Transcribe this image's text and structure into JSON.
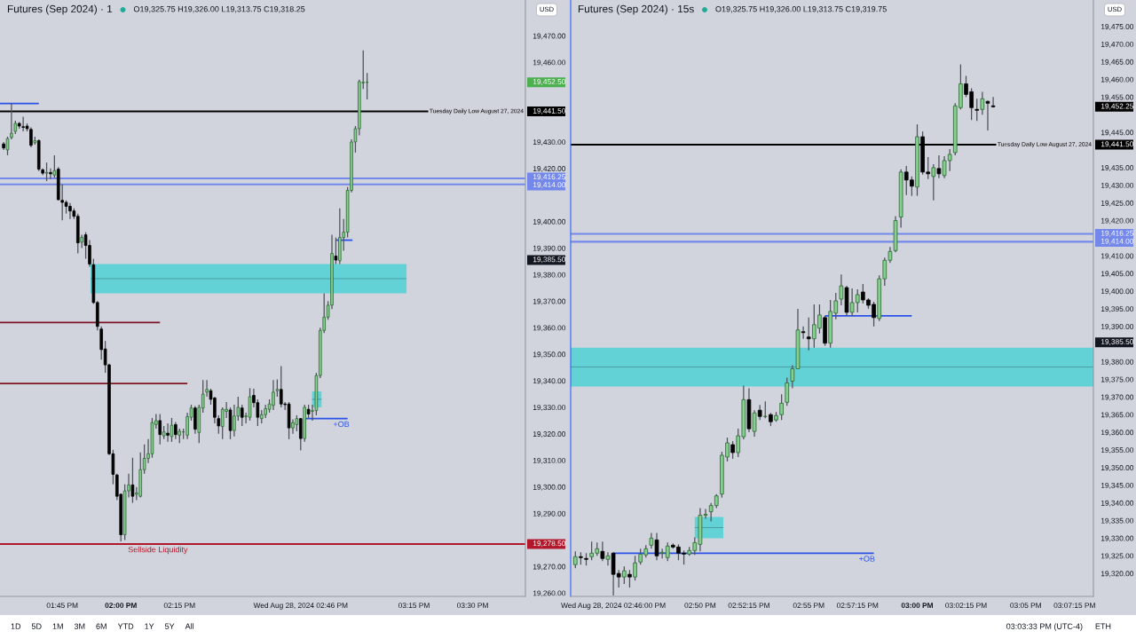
{
  "chart_data": [
    {
      "type": "candlestick",
      "title": "Futures (Sep 2024) · 1",
      "subtitle": "O19,325.75 H19,326.00 L19,313.75 C19,318.25",
      "ylabel": "USD",
      "x": [
        "2024-08-28T13:30",
        "2024-08-28T13:31",
        "2024-08-28T13:32",
        "2024-08-28T13:33",
        "2024-08-28T13:34",
        "2024-08-28T13:35",
        "2024-08-28T13:36",
        "2024-08-28T13:37",
        "2024-08-28T13:38",
        "2024-08-28T13:39",
        "2024-08-28T13:40",
        "2024-08-28T13:41",
        "2024-08-28T13:42",
        "2024-08-28T13:43",
        "2024-08-28T13:44",
        "2024-08-28T13:45",
        "2024-08-28T13:46",
        "2024-08-28T13:47",
        "2024-08-28T13:48",
        "2024-08-28T13:49",
        "2024-08-28T13:50",
        "2024-08-28T13:51",
        "2024-08-28T13:52",
        "2024-08-28T13:53",
        "2024-08-28T13:54",
        "2024-08-28T13:55",
        "2024-08-28T13:56",
        "2024-08-28T13:57",
        "2024-08-28T13:58",
        "2024-08-28T13:59",
        "2024-08-28T14:00",
        "2024-08-28T14:01",
        "2024-08-28T14:02",
        "2024-08-28T14:03",
        "2024-08-28T14:04",
        "2024-08-28T14:05",
        "2024-08-28T14:06",
        "2024-08-28T14:07",
        "2024-08-28T14:08",
        "2024-08-28T14:09",
        "2024-08-28T14:10",
        "2024-08-28T14:11",
        "2024-08-28T14:12",
        "2024-08-28T14:13",
        "2024-08-28T14:14",
        "2024-08-28T14:15",
        "2024-08-28T14:16",
        "2024-08-28T14:17",
        "2024-08-28T14:18",
        "2024-08-28T14:19",
        "2024-08-28T14:20",
        "2024-08-28T14:21",
        "2024-08-28T14:22",
        "2024-08-28T14:23",
        "2024-08-28T14:24",
        "2024-08-28T14:25",
        "2024-08-28T14:26",
        "2024-08-28T14:27",
        "2024-08-28T14:28",
        "2024-08-28T14:29",
        "2024-08-28T14:30",
        "2024-08-28T14:31",
        "2024-08-28T14:32",
        "2024-08-28T14:33",
        "2024-08-28T14:34",
        "2024-08-28T14:35",
        "2024-08-28T14:36",
        "2024-08-28T14:37",
        "2024-08-28T14:38",
        "2024-08-28T14:39",
        "2024-08-28T14:40",
        "2024-08-28T14:41",
        "2024-08-28T14:42",
        "2024-08-28T14:43",
        "2024-08-28T14:44",
        "2024-08-28T14:45",
        "2024-08-28T14:46",
        "2024-08-28T14:47",
        "2024-08-28T14:48",
        "2024-08-28T14:49",
        "2024-08-28T14:50",
        "2024-08-28T14:51",
        "2024-08-28T14:52",
        "2024-08-28T14:53",
        "2024-08-28T14:54",
        "2024-08-28T14:55",
        "2024-08-28T14:56",
        "2024-08-28T14:57",
        "2024-08-28T14:58",
        "2024-08-28T14:59",
        "2024-08-28T15:00",
        "2024-08-28T15:01",
        "2024-08-28T15:02",
        "2024-08-28T15:03"
      ],
      "ohlc": [
        [
          19429.25,
          19430.0,
          19427.0,
          19427.75
        ],
        [
          19427.0,
          19432.0,
          19425.0,
          19431.25
        ],
        [
          19431.75,
          19444.5,
          19431.0,
          19433.25
        ],
        [
          19434.0,
          19438.0,
          19433.0,
          19437.0
        ],
        [
          19437.0,
          19437.5,
          19435.0,
          19436.0
        ],
        [
          19435.75,
          19439.5,
          19434.0,
          19435.5
        ],
        [
          19436.0,
          19437.0,
          19434.0,
          19435.0
        ],
        [
          19434.75,
          19435.5,
          19428.0,
          19428.75
        ],
        [
          19429.75,
          19432.0,
          19429.0,
          19430.5
        ],
        [
          19430.5,
          19431.0,
          19419.0,
          19419.75
        ],
        [
          19419.5,
          19420.0,
          19417.5,
          19418.25
        ],
        [
          19418.25,
          19422.25,
          19415.25,
          19418.5
        ],
        [
          19418.5,
          19420.0,
          19416.0,
          19418.0
        ],
        [
          19417.5,
          19425.0,
          19416.5,
          19419.25
        ],
        [
          19419.75,
          19420.5,
          19408.0,
          19408.25
        ],
        [
          19408.0,
          19414.0,
          19400.5,
          19407.25
        ],
        [
          19407.25,
          19408.0,
          19403.0,
          19405.75
        ],
        [
          19405.75,
          19407.0,
          19401.0,
          19404.0
        ],
        [
          19404.0,
          19405.0,
          19401.0,
          19402.0
        ],
        [
          19402.0,
          19403.0,
          19388.0,
          19392.0
        ],
        [
          19392.25,
          19395.0,
          19390.0,
          19394.0
        ],
        [
          19395.0,
          19396.0,
          19386.0,
          19391.0
        ],
        [
          19391.0,
          19393.0,
          19383.0,
          19384.0
        ],
        [
          19383.75,
          19386.0,
          19369.0,
          19369.5
        ],
        [
          19369.5,
          19370.0,
          19359.0,
          19360.5
        ],
        [
          19359.5,
          19360.5,
          19348.0,
          19351.75
        ],
        [
          19352.0,
          19355.0,
          19343.0,
          19346.0
        ],
        [
          19346.0,
          19346.5,
          19312.0,
          19312.5
        ],
        [
          19312.5,
          19314.0,
          19301.0,
          19304.75
        ],
        [
          19304.5,
          19305.0,
          19295.0,
          19296.5
        ],
        [
          19297.25,
          19297.5,
          19279.5,
          19282.0
        ],
        [
          19282.0,
          19301.0,
          19280.0,
          19298.5
        ],
        [
          19298.5,
          19305.0,
          19296.0,
          19300.75
        ],
        [
          19300.75,
          19311.0,
          19294.0,
          19296.5
        ],
        [
          19297.25,
          19300.0,
          19295.0,
          19297.75
        ],
        [
          19296.5,
          19313.0,
          19296.0,
          19306.5
        ],
        [
          19306.5,
          19316.0,
          19305.0,
          19310.75
        ],
        [
          19310.75,
          19318.0,
          19309.0,
          19312.5
        ],
        [
          19312.5,
          19326.0,
          19311.0,
          19324.25
        ],
        [
          19323.5,
          19327.5,
          19322.0,
          19325.0
        ],
        [
          19325.0,
          19327.5,
          19316.0,
          19319.75
        ],
        [
          19319.25,
          19323.0,
          19318.0,
          19320.75
        ],
        [
          19320.25,
          19324.0,
          19317.0,
          19319.5
        ],
        [
          19319.0,
          19326.0,
          19317.0,
          19323.25
        ],
        [
          19323.5,
          19324.5,
          19318.0,
          19319.75
        ],
        [
          19319.5,
          19322.0,
          19316.5,
          19321.0
        ],
        [
          19320.75,
          19322.0,
          19318.0,
          19320.75
        ],
        [
          19319.5,
          19328.0,
          19318.0,
          19326.5
        ],
        [
          19326.25,
          19331.0,
          19325.0,
          19329.75
        ],
        [
          19329.75,
          19330.5,
          19320.0,
          19321.75
        ],
        [
          19320.5,
          19331.0,
          19316.5,
          19330.0
        ],
        [
          19329.75,
          19340.25,
          19328.0,
          19335.0
        ],
        [
          19335.75,
          19340.25,
          19334.0,
          19336.75
        ],
        [
          19336.25,
          19337.0,
          19331.0,
          19333.0
        ],
        [
          19333.5,
          19334.0,
          19324.0,
          19326.25
        ],
        [
          19325.75,
          19327.0,
          19320.0,
          19323.0
        ],
        [
          19322.75,
          19330.0,
          19318.0,
          19329.25
        ],
        [
          19328.5,
          19332.0,
          19326.0,
          19329.25
        ],
        [
          19329.0,
          19330.0,
          19318.0,
          19321.25
        ],
        [
          19321.25,
          19331.0,
          19319.0,
          19326.75
        ],
        [
          19326.75,
          19334.0,
          19325.0,
          19330.0
        ],
        [
          19329.75,
          19331.0,
          19323.0,
          19326.25
        ],
        [
          19326.5,
          19328.0,
          19324.0,
          19326.75
        ],
        [
          19326.25,
          19337.25,
          19325.0,
          19334.0
        ],
        [
          19334.5,
          19337.0,
          19330.0,
          19331.75
        ],
        [
          19331.75,
          19333.0,
          19323.0,
          19326.25
        ],
        [
          19325.75,
          19329.0,
          19324.0,
          19327.25
        ],
        [
          19327.25,
          19331.0,
          19326.0,
          19329.5
        ],
        [
          19329.25,
          19333.0,
          19328.0,
          19331.25
        ],
        [
          19330.75,
          19340.25,
          19329.0,
          19335.75
        ],
        [
          19336.25,
          19340.5,
          19334.0,
          19336.75
        ],
        [
          19336.75,
          19345.5,
          19330.0,
          19331.25
        ],
        [
          19331.25,
          19332.0,
          19329.0,
          19331.0
        ],
        [
          19331.25,
          19332.0,
          19318.0,
          19322.25
        ],
        [
          19322.25,
          19325.5,
          19320.0,
          19324.25
        ],
        [
          19323.5,
          19327.0,
          19321.0,
          19325.75
        ],
        [
          19325.75,
          19326.0,
          19313.75,
          19318.25
        ],
        [
          19318.25,
          19331.0,
          19317.0,
          19330.0
        ],
        [
          19329.25,
          19331.0,
          19326.0,
          19327.5
        ],
        [
          19328.5,
          19331.0,
          19325.0,
          19328.75
        ],
        [
          19328.75,
          19343.0,
          19327.0,
          19342.0
        ],
        [
          19342.0,
          19360.0,
          19341.0,
          19359.0
        ],
        [
          19359.0,
          19373.0,
          19358.0,
          19364.0
        ],
        [
          19364.0,
          19370.0,
          19363.0,
          19368.5
        ],
        [
          19368.5,
          19395.0,
          19367.0,
          19388.0
        ],
        [
          19387.0,
          19394.0,
          19384.0,
          19385.5
        ],
        [
          19385.25,
          19405.0,
          19384.0,
          19394.0
        ],
        [
          19394.0,
          19401.0,
          19389.0,
          19396.0
        ],
        [
          19396.0,
          19413.0,
          19394.0,
          19411.75
        ],
        [
          19411.75,
          19431.0,
          19411.0,
          19430.0
        ],
        [
          19430.0,
          19436.0,
          19426.0,
          19435.0
        ],
        [
          19435.0,
          19453.5,
          19432.5,
          19452.75
        ],
        [
          19452.25,
          19464.5,
          19450.0,
          19452.5
        ],
        [
          19452.5,
          19456.0,
          19446.0,
          19452.5
        ]
      ],
      "xlim": [
        "2024-08-28T13:29:04",
        "2024-08-28T15:43:30"
      ],
      "ylim": [
        19258.75,
        19483.5
      ],
      "xticks": [
        {
          "value": "2024-08-28T13:45",
          "label": "01:45 PM"
        },
        {
          "value": "2024-08-28T14:00",
          "label": "02:00 PM"
        },
        {
          "value": "2024-08-28T14:15",
          "label": "02:15 PM"
        },
        {
          "value": "2024-08-28T14:46",
          "label": "Wed Aug 28, 2024 02:46 PM"
        },
        {
          "value": "2024-08-28T15:15",
          "label": "03:15 PM"
        },
        {
          "value": "2024-08-28T15:30",
          "label": "03:30 PM"
        }
      ],
      "yticks": [
        {
          "value": 19470,
          "label": "19,470.00"
        },
        {
          "value": 19460,
          "label": "19,460.00"
        },
        {
          "value": 19452.5,
          "label": "19,452.50"
        },
        {
          "value": 19441.5,
          "label": "19,441.50"
        },
        {
          "value": 19430,
          "label": "19,430.00"
        },
        {
          "value": 19420,
          "label": "19,420.00"
        },
        {
          "value": 19416.25,
          "label": "19,416.25"
        },
        {
          "value": 19414.0,
          "label": "19,414.00"
        },
        {
          "value": 19400,
          "label": "19,400.00"
        },
        {
          "value": 19390,
          "label": "19,390.00"
        },
        {
          "value": 19385.5,
          "label": "19,385.50"
        },
        {
          "value": 19380,
          "label": "19,380.00"
        },
        {
          "value": 19370,
          "label": "19,370.00"
        },
        {
          "value": 19360,
          "label": "19,360.00"
        },
        {
          "value": 19350,
          "label": "19,350.00"
        },
        {
          "value": 19340,
          "label": "19,340.00"
        },
        {
          "value": 19330,
          "label": "19,330.00"
        },
        {
          "value": 19320,
          "label": "19,320.00"
        },
        {
          "value": 19310,
          "label": "19,310.00"
        },
        {
          "value": 19300,
          "label": "19,300.00"
        },
        {
          "value": 19290,
          "label": "19,290.00"
        },
        {
          "value": 19278.5,
          "label": "19,278.50"
        },
        {
          "value": 19270,
          "label": "19,270.00"
        },
        {
          "value": 19260,
          "label": "19,260.00"
        }
      ],
      "series": [
        {
          "type": "line",
          "x": [
            "2024-08-28T13:52:13",
            "2024-08-28T15:13:05"
          ],
          "values": [
            19378.5,
            19378.5
          ],
          "lower": [
            19373,
            19373
          ],
          "upper": [
            19384,
            19384
          ],
          "color": "#4a9ea2"
        },
        {
          "type": "line",
          "x": [
            "2024-08-28T14:48:55",
            "2024-08-28T14:51:20"
          ],
          "values": [
            19333,
            19333
          ],
          "lower": [
            19330,
            19330
          ],
          "upper": [
            19336,
            19336
          ],
          "color": "#4a9ea2"
        },
        {
          "type": "line",
          "x": [
            "2024-08-28T13:29:04",
            "2024-08-28T14:10"
          ],
          "values": [
            19362,
            19362
          ],
          "color": "#7f1426"
        },
        {
          "type": "line",
          "x": [
            "2024-08-28T13:29:04",
            "2024-08-28T14:17"
          ],
          "values": [
            19339,
            19339
          ],
          "color": "#7f1426"
        },
        {
          "type": "line",
          "x": [
            "2024-08-28T13:29:04",
            "2024-08-28T13:39"
          ],
          "values": [
            19444.5,
            19444.5
          ],
          "color": "#2a52e8"
        },
        {
          "type": "line",
          "x": [
            "2024-08-28T14:47",
            "2024-08-28T14:58"
          ],
          "values": [
            19325.75,
            19325.75
          ],
          "color": "#2a52e8"
        },
        {
          "type": "line",
          "x": [
            "2024-08-28T14:55",
            "2024-08-28T14:59:15"
          ],
          "values": [
            19393,
            19393
          ],
          "color": "#2a52e8"
        }
      ],
      "ref_lines": [
        {
          "axis": "y",
          "value": 19441.5,
          "label": "Tuesday Daily Low August 27, 2024",
          "color": "#000000"
        },
        {
          "axis": "y",
          "value": 19416.25,
          "color": "#7388ea"
        },
        {
          "axis": "y",
          "value": 19414.0,
          "color": "#7388ea"
        },
        {
          "axis": "y",
          "value": 19278.5,
          "color": "#b2182b"
        }
      ],
      "annotations": [
        {
          "text": "Sellside Liquidity",
          "x": "2024-08-28T14:01:30",
          "y": 19278.5
        },
        {
          "text": "+OB",
          "x": "2024-08-28T14:54",
          "y": 19325.75
        },
        "1D",
        "5D",
        "1M",
        "3M",
        "6M",
        "YTD",
        "1Y",
        "5Y",
        "All"
      ]
    },
    {
      "type": "candlestick",
      "title": "Futures (Sep 2024) · 15s",
      "subtitle": "O19,325.75 H19,326.00 L19,313.75 C19,319.75",
      "ylabel": "USD",
      "x": [
        "2024-08-28T14:44:15",
        "2024-08-28T14:44:30",
        "2024-08-28T14:44:45",
        "2024-08-28T14:45:00",
        "2024-08-28T14:45:15",
        "2024-08-28T14:45:30",
        "2024-08-28T14:45:45",
        "2024-08-28T14:46:00",
        "2024-08-28T14:46:15",
        "2024-08-28T14:46:30",
        "2024-08-28T14:46:45",
        "2024-08-28T14:47:00",
        "2024-08-28T14:47:15",
        "2024-08-28T14:47:30",
        "2024-08-28T14:47:45",
        "2024-08-28T14:48:00",
        "2024-08-28T14:48:15",
        "2024-08-28T14:48:30",
        "2024-08-28T14:48:45",
        "2024-08-28T14:49:00",
        "2024-08-28T14:49:15",
        "2024-08-28T14:49:30",
        "2024-08-28T14:49:45",
        "2024-08-28T14:50:00",
        "2024-08-28T14:50:15",
        "2024-08-28T14:50:30",
        "2024-08-28T14:50:45",
        "2024-08-28T14:51:00",
        "2024-08-28T14:51:15",
        "2024-08-28T14:51:30",
        "2024-08-28T14:51:45",
        "2024-08-28T14:52:00",
        "2024-08-28T14:52:15",
        "2024-08-28T14:52:30",
        "2024-08-28T14:52:45",
        "2024-08-28T14:53:00",
        "2024-08-28T14:53:15",
        "2024-08-28T14:53:30",
        "2024-08-28T14:53:45",
        "2024-08-28T14:54:00",
        "2024-08-28T14:54:15",
        "2024-08-28T14:54:30",
        "2024-08-28T14:54:45",
        "2024-08-28T14:55:00",
        "2024-08-28T14:55:15",
        "2024-08-28T14:55:30",
        "2024-08-28T14:55:45",
        "2024-08-28T14:56:00",
        "2024-08-28T14:56:15",
        "2024-08-28T14:56:30",
        "2024-08-28T14:56:45",
        "2024-08-28T14:57:00",
        "2024-08-28T14:57:15",
        "2024-08-28T14:57:30",
        "2024-08-28T14:57:45",
        "2024-08-28T14:58:00",
        "2024-08-28T14:58:15",
        "2024-08-28T14:58:30",
        "2024-08-28T14:58:45",
        "2024-08-28T14:59:00",
        "2024-08-28T14:59:15",
        "2024-08-28T14:59:30",
        "2024-08-28T14:59:45",
        "2024-08-28T15:00:00",
        "2024-08-28T15:00:15",
        "2024-08-28T15:00:30",
        "2024-08-28T15:00:45",
        "2024-08-28T15:01:00",
        "2024-08-28T15:01:15",
        "2024-08-28T15:01:30",
        "2024-08-28T15:01:45",
        "2024-08-28T15:02:00",
        "2024-08-28T15:02:15",
        "2024-08-28T15:02:30",
        "2024-08-28T15:02:45",
        "2024-08-28T15:03:00",
        "2024-08-28T15:03:15",
        "2024-08-28T15:03:30"
      ],
      "ohlc": [
        [
          19322.5,
          19326.25,
          19321.5,
          19324.75
        ],
        [
          19324.75,
          19326.0,
          19322.5,
          19324.5
        ],
        [
          19324.25,
          19325.75,
          19322.25,
          19324.0
        ],
        [
          19324.75,
          19329.0,
          19323.75,
          19325.75
        ],
        [
          19325.75,
          19328.75,
          19325.0,
          19327.0
        ],
        [
          19326.25,
          19329.0,
          19323.5,
          19324.25
        ],
        [
          19324.0,
          19326.0,
          19322.25,
          19325.0
        ],
        [
          19325.75,
          19326.0,
          19313.75,
          19319.75
        ],
        [
          19320.0,
          19321.0,
          19316.0,
          19319.0
        ],
        [
          19319.0,
          19322.0,
          19317.0,
          19320.75
        ],
        [
          19319.75,
          19321.0,
          19316.0,
          19319.0
        ],
        [
          19319.0,
          19325.0,
          19318.0,
          19323.0
        ],
        [
          19323.25,
          19327.0,
          19322.5,
          19325.5
        ],
        [
          19325.25,
          19328.0,
          19324.5,
          19327.0
        ],
        [
          19328.0,
          19331.5,
          19327.0,
          19330.0
        ],
        [
          19329.5,
          19331.5,
          19323.75,
          19325.0
        ],
        [
          19325.75,
          19327.0,
          19324.25,
          19326.0
        ],
        [
          19324.5,
          19328.75,
          19323.5,
          19327.75
        ],
        [
          19328.0,
          19328.5,
          19327.0,
          19327.5
        ],
        [
          19327.5,
          19328.25,
          19323.75,
          19325.75
        ],
        [
          19325.75,
          19326.5,
          19322.5,
          19325.5
        ],
        [
          19325.5,
          19327.5,
          19325.0,
          19326.5
        ],
        [
          19326.5,
          19330.25,
          19325.25,
          19328.75
        ],
        [
          19328.25,
          19338.5,
          19326.25,
          19336.5
        ],
        [
          19336.5,
          19338.25,
          19335.5,
          19336.75
        ],
        [
          19337.5,
          19340.0,
          19334.75,
          19339.25
        ],
        [
          19339.25,
          19342.5,
          19338.5,
          19342.0
        ],
        [
          19342.5,
          19354.5,
          19341.5,
          19353.5
        ],
        [
          19353.0,
          19358.5,
          19351.75,
          19357.0
        ],
        [
          19356.5,
          19357.5,
          19352.5,
          19354.25
        ],
        [
          19354.25,
          19361.0,
          19353.0,
          19359.0
        ],
        [
          19358.75,
          19373.25,
          19358.0,
          19369.25
        ],
        [
          19369.25,
          19372.5,
          19360.0,
          19361.0
        ],
        [
          19360.25,
          19366.25,
          19358.75,
          19365.5
        ],
        [
          19366.25,
          19367.75,
          19363.5,
          19364.5
        ],
        [
          19364.5,
          19368.75,
          19364.0,
          19364.5
        ],
        [
          19365.0,
          19365.5,
          19361.75,
          19363.0
        ],
        [
          19363.5,
          19365.75,
          19363.0,
          19364.75
        ],
        [
          19365.0,
          19370.75,
          19363.5,
          19368.25
        ],
        [
          19368.5,
          19375.5,
          19367.5,
          19374.0
        ],
        [
          19374.5,
          19379.0,
          19372.5,
          19378.0
        ],
        [
          19378.0,
          19395.0,
          19378.0,
          19389.0
        ],
        [
          19388.5,
          19390.0,
          19386.5,
          19388.25
        ],
        [
          19387.0,
          19392.5,
          19383.25,
          19386.5
        ],
        [
          19386.5,
          19396.25,
          19384.0,
          19390.5
        ],
        [
          19389.5,
          19396.25,
          19388.0,
          19393.25
        ],
        [
          19392.5,
          19393.0,
          19384.5,
          19385.25
        ],
        [
          19385.25,
          19397.5,
          19384.0,
          19394.25
        ],
        [
          19393.75,
          19399.5,
          19392.0,
          19397.25
        ],
        [
          19397.75,
          19404.75,
          19396.0,
          19401.5
        ],
        [
          19401.0,
          19401.5,
          19393.0,
          19394.0
        ],
        [
          19394.0,
          19400.75,
          19393.0,
          19396.75
        ],
        [
          19396.75,
          19400.5,
          19394.0,
          19399.0
        ],
        [
          19399.75,
          19402.0,
          19396.5,
          19397.5
        ],
        [
          19397.5,
          19398.0,
          19395.0,
          19396.0
        ],
        [
          19396.25,
          19397.0,
          19390.0,
          19392.5
        ],
        [
          19392.25,
          19404.5,
          19391.5,
          19403.5
        ],
        [
          19403.5,
          19409.5,
          19401.5,
          19408.75
        ],
        [
          19408.75,
          19412.5,
          19408.0,
          19411.25
        ],
        [
          19411.5,
          19421.25,
          19411.0,
          19420.0
        ],
        [
          19421.0,
          19434.5,
          19418.0,
          19433.75
        ],
        [
          19433.75,
          19435.5,
          19427.25,
          19431.5
        ],
        [
          19431.5,
          19432.5,
          19427.0,
          19429.75
        ],
        [
          19429.5,
          19447.25,
          19427.0,
          19443.75
        ],
        [
          19443.75,
          19445.25,
          19433.0,
          19433.75
        ],
        [
          19433.75,
          19438.0,
          19431.75,
          19433.25
        ],
        [
          19432.5,
          19436.0,
          19425.75,
          19435.0
        ],
        [
          19434.75,
          19438.5,
          19432.0,
          19433.25
        ],
        [
          19432.75,
          19438.25,
          19432.0,
          19437.0
        ],
        [
          19437.0,
          19440.25,
          19434.0,
          19438.75
        ],
        [
          19439.25,
          19453.25,
          19438.5,
          19452.5
        ],
        [
          19452.0,
          19464.25,
          19451.5,
          19458.75
        ],
        [
          19458.75,
          19461.0,
          19455.0,
          19455.75
        ],
        [
          19456.5,
          19457.5,
          19448.5,
          19452.0
        ],
        [
          19451.5,
          19454.5,
          19448.25,
          19451.25
        ],
        [
          19451.5,
          19456.5,
          19450.0,
          19454.5
        ],
        [
          19453.75,
          19454.0,
          19445.5,
          19453.25
        ],
        [
          19452.5,
          19455.0,
          19452.0,
          19452.25
        ]
      ],
      "xlim": [
        "2024-08-28T14:44:02",
        "2024-08-28T15:08:07"
      ],
      "ylim": [
        19313.5,
        19482.5
      ],
      "xticks": [
        {
          "value": "2024-08-28T14:46:00",
          "label": "Wed Aug 28, 2024 02:46:00 PM"
        },
        {
          "value": "2024-08-28T14:50:00",
          "label": "02:50 PM"
        },
        {
          "value": "2024-08-28T14:52:15",
          "label": "02:52:15 PM"
        },
        {
          "value": "2024-08-28T14:55:00",
          "label": "02:55 PM"
        },
        {
          "value": "2024-08-28T14:57:15",
          "label": "02:57:15 PM"
        },
        {
          "value": "2024-08-28T15:00:00",
          "label": "03:00 PM"
        },
        {
          "value": "2024-08-28T15:02:15",
          "label": "03:02:15 PM"
        },
        {
          "value": "2024-08-28T15:05:00",
          "label": "03:05 PM"
        },
        {
          "value": "2024-08-28T15:07:15",
          "label": "03:07:15 PM"
        }
      ],
      "yticks": [
        {
          "value": 19475,
          "label": "19,475.00"
        },
        {
          "value": 19470,
          "label": "19,470.00"
        },
        {
          "value": 19465,
          "label": "19,465.00"
        },
        {
          "value": 19460,
          "label": "19,460.00"
        },
        {
          "value": 19455,
          "label": "19,455.00"
        },
        {
          "value": 19452.25,
          "label": "19,452.25"
        },
        {
          "value": 19445,
          "label": "19,445.00"
        },
        {
          "value": 19441.5,
          "label": "19,441.50"
        },
        {
          "value": 19435,
          "label": "19,435.00"
        },
        {
          "value": 19430,
          "label": "19,430.00"
        },
        {
          "value": 19425,
          "label": "19,425.00"
        },
        {
          "value": 19420,
          "label": "19,420.00"
        },
        {
          "value": 19416.25,
          "label": "19,416.25"
        },
        {
          "value": 19414.0,
          "label": "19,414.00"
        },
        {
          "value": 19410,
          "label": "19,410.00"
        },
        {
          "value": 19405,
          "label": "19,405.00"
        },
        {
          "value": 19400,
          "label": "19,400.00"
        },
        {
          "value": 19395,
          "label": "19,395.00"
        },
        {
          "value": 19390,
          "label": "19,390.00"
        },
        {
          "value": 19385.5,
          "label": "19,385.50"
        },
        {
          "value": 19380,
          "label": "19,380.00"
        },
        {
          "value": 19375,
          "label": "19,375.00"
        },
        {
          "value": 19370,
          "label": "19,370.00"
        },
        {
          "value": 19365,
          "label": "19,365.00"
        },
        {
          "value": 19360,
          "label": "19,360.00"
        },
        {
          "value": 19355,
          "label": "19,355.00"
        },
        {
          "value": 19350,
          "label": "19,350.00"
        },
        {
          "value": 19345,
          "label": "19,345.00"
        },
        {
          "value": 19340,
          "label": "19,340.00"
        },
        {
          "value": 19335,
          "label": "19,335.00"
        },
        {
          "value": 19330,
          "label": "19,330.00"
        },
        {
          "value": 19325,
          "label": "19,325.00"
        },
        {
          "value": 19320,
          "label": "19,320.00"
        }
      ],
      "series": [
        {
          "type": "line",
          "x": [
            "2024-08-28T14:44:02",
            "2024-08-28T15:08:07"
          ],
          "values": [
            19378.5,
            19378.5
          ],
          "lower": [
            19373,
            19373
          ],
          "upper": [
            19384,
            19384
          ],
          "color": "#4a9ea2"
        },
        {
          "type": "line",
          "x": [
            "2024-08-28T14:49:45",
            "2024-08-28T14:51:04"
          ],
          "values": [
            19333,
            19333
          ],
          "lower": [
            19330,
            19330
          ],
          "upper": [
            19336,
            19336
          ],
          "color": "#4a9ea2"
        },
        {
          "type": "line",
          "x": [
            "2024-08-28T14:46:00",
            "2024-08-28T14:58:00"
          ],
          "values": [
            19325.75,
            19325.75
          ],
          "color": "#2a52e8"
        },
        {
          "type": "line",
          "x": [
            "2024-08-28T14:55:45",
            "2024-08-28T14:59:45"
          ],
          "values": [
            19393,
            19393
          ],
          "color": "#2a52e8"
        }
      ],
      "ref_lines": [
        {
          "axis": "y",
          "value": 19441.5,
          "label": "Tuesday Daily Low August 27, 2024",
          "color": "#000000"
        },
        {
          "axis": "y",
          "value": 19416.25,
          "color": "#7388ea"
        },
        {
          "axis": "y",
          "value": 19414.0,
          "color": "#7388ea"
        }
      ],
      "annotations": [
        {
          "text": "+OB",
          "x": "2024-08-28T14:57:15",
          "y": 19325.75
        },
        "03:03:33 PM (UTC-4)",
        "ETH"
      ]
    }
  ]
}
